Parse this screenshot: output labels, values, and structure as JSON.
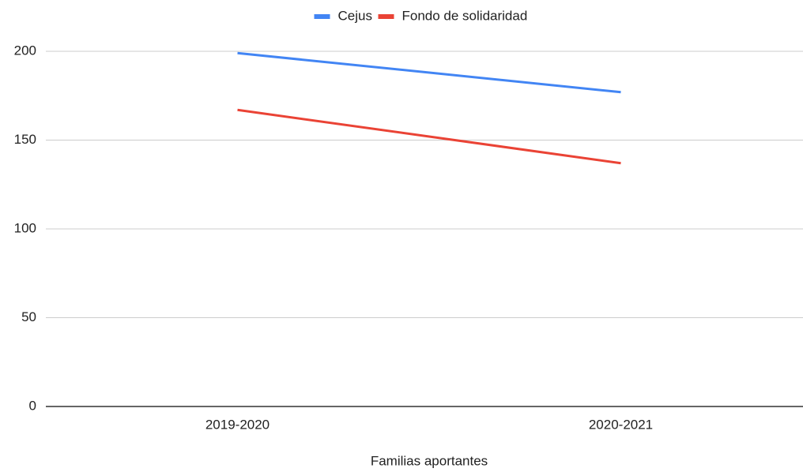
{
  "chart_data": {
    "type": "line",
    "x_label": "Familias aportantes",
    "categories": [
      "2019-2020",
      "2020-2021"
    ],
    "series": [
      {
        "name": "Cejus",
        "color": "#4285f4",
        "values": [
          199,
          177
        ]
      },
      {
        "name": "Fondo de solidaridad",
        "color": "#ea4335",
        "values": [
          167,
          137
        ]
      }
    ],
    "ylim": [
      0,
      200
    ],
    "yticks": [
      0,
      50,
      100,
      150,
      200
    ],
    "grid": true,
    "legend": "top"
  }
}
